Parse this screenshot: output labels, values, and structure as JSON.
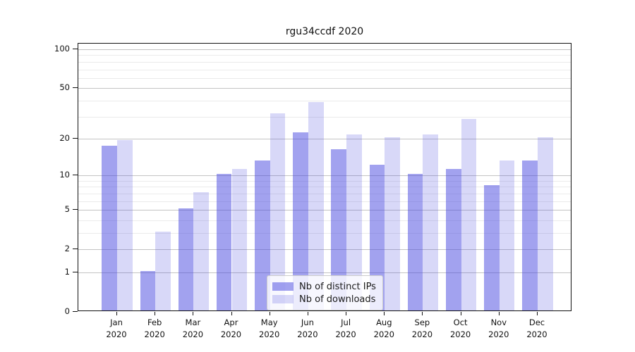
{
  "title": "rgu34ccdf 2020",
  "chart_data": {
    "type": "bar",
    "title": "rgu34ccdf 2020",
    "categories": [
      "Jan 2020",
      "Feb 2020",
      "Mar 2020",
      "Apr 2020",
      "May 2020",
      "Jun 2020",
      "Jul 2020",
      "Aug 2020",
      "Sep 2020",
      "Oct 2020",
      "Nov 2020",
      "Dec 2020"
    ],
    "month_labels": [
      "Jan",
      "Feb",
      "Mar",
      "Apr",
      "May",
      "Jun",
      "Jul",
      "Aug",
      "Sep",
      "Oct",
      "Nov",
      "Dec"
    ],
    "year_label": "2020",
    "series": [
      {
        "name": "Nb of distinct IPs",
        "color": "rgba(69,69,223,0.50)",
        "values": [
          17,
          1,
          5,
          10,
          13,
          22,
          16,
          12,
          10,
          11,
          8,
          13
        ]
      },
      {
        "name": "Nb of downloads",
        "color": "rgba(69,69,223,0.21)",
        "values": [
          19,
          3,
          7,
          11,
          31,
          38,
          21,
          20,
          21,
          28,
          13,
          20
        ]
      }
    ],
    "xlabel": "",
    "ylabel": "",
    "yscale": "log1p",
    "ylim": [
      0,
      101
    ],
    "yticks_major": [
      0,
      1,
      2,
      5,
      10,
      20,
      50,
      100
    ],
    "yticks_minor": [
      3,
      4,
      6,
      7,
      8,
      9,
      30,
      40,
      60,
      70,
      80,
      90
    ],
    "grid": true,
    "legend_position": "lower center"
  },
  "colors": {
    "bar_dark": "rgba(69,69,223,0.50)",
    "bar_light": "rgba(69,69,223,0.21)",
    "grid_major": "#c3c3c3",
    "grid_minor": "#ebebeb",
    "spine": "#111111",
    "text": "#111111"
  }
}
